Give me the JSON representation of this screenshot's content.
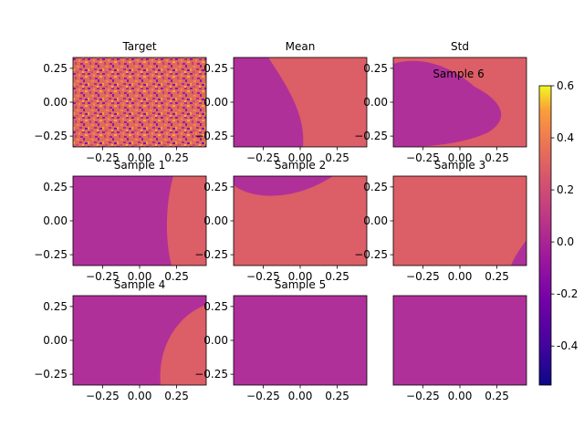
{
  "colormap": "plasma",
  "colors": {
    "panel_salmon": "#dc5e66",
    "panel_purple": "#a5279a",
    "panel_pink": "#b83289",
    "noise_orange": "#f0864e",
    "noise_purple": "#8a1fa0"
  },
  "colorbar": {
    "range": [
      -0.55,
      0.6
    ],
    "ticks": [
      "0.6",
      "0.4",
      "0.2",
      "0.0",
      "-0.2",
      "-0.4"
    ],
    "tick_values": [
      0.6,
      0.4,
      0.2,
      0.0,
      -0.2,
      -0.4
    ]
  },
  "chart_data": [
    {
      "type": "heatmap",
      "title": "Target",
      "x_ticks": [
        "−0.25",
        "0.00",
        "0.25"
      ],
      "y_ticks": [
        "0.25",
        "0.00",
        "−0.25"
      ],
      "xlim": [
        -0.45,
        0.45
      ],
      "ylim": [
        -0.33,
        0.33
      ],
      "pattern": "noise"
    },
    {
      "type": "heatmap",
      "title": "Mean",
      "x_ticks": [
        "−0.25",
        "0.00",
        "0.25"
      ],
      "y_ticks": [
        "0.25",
        "0.00",
        "−0.25"
      ],
      "xlim": [
        -0.45,
        0.45
      ],
      "ylim": [
        -0.33,
        0.33
      ],
      "pattern": "left-lobe"
    },
    {
      "type": "heatmap",
      "title": "Std",
      "annotation": "Sample 6",
      "x_ticks": [
        "−0.25",
        "0.00",
        "0.25"
      ],
      "y_ticks": [
        "0.25",
        "0.00",
        "−0.25"
      ],
      "xlim": [
        -0.45,
        0.45
      ],
      "ylim": [
        -0.33,
        0.33
      ],
      "pattern": "left-bulb"
    },
    {
      "type": "heatmap",
      "title": "Sample 1",
      "x_ticks": [
        "−0.25",
        "0.00",
        "0.25"
      ],
      "y_ticks": [
        "0.25",
        "0.00",
        "−0.25"
      ],
      "xlim": [
        -0.45,
        0.45
      ],
      "ylim": [
        -0.33,
        0.33
      ],
      "pattern": "right-region"
    },
    {
      "type": "heatmap",
      "title": "Sample 2",
      "x_ticks": [
        "−0.25",
        "0.00",
        "0.25"
      ],
      "y_ticks": [
        "0.25",
        "0.00",
        "−0.25"
      ],
      "xlim": [
        -0.45,
        0.45
      ],
      "ylim": [
        -0.33,
        0.33
      ],
      "pattern": "top-arc"
    },
    {
      "type": "heatmap",
      "title": "Sample 3",
      "x_ticks": [
        "−0.25",
        "0.00",
        "0.25"
      ],
      "y_ticks": [
        "0.25",
        "0.00",
        "−0.25"
      ],
      "xlim": [
        -0.45,
        0.45
      ],
      "ylim": [
        -0.33,
        0.33
      ],
      "pattern": "corner"
    },
    {
      "type": "heatmap",
      "title": "Sample 4",
      "x_ticks": [
        "−0.25",
        "0.00",
        "0.25"
      ],
      "y_ticks": [
        "0.25",
        "0.00",
        "−0.25"
      ],
      "xlim": [
        -0.45,
        0.45
      ],
      "ylim": [
        -0.33,
        0.33
      ],
      "pattern": "right-crescent"
    },
    {
      "type": "heatmap",
      "title": "Sample 5",
      "x_ticks": [
        "−0.25",
        "0.00",
        "0.25"
      ],
      "y_ticks": [
        "0.25",
        "0.00",
        "−0.25"
      ],
      "xlim": [
        -0.45,
        0.45
      ],
      "ylim": [
        -0.33,
        0.33
      ],
      "pattern": "uniform"
    },
    {
      "type": "heatmap",
      "title": "",
      "x_ticks": [
        "−0.25",
        "0.00",
        "0.25"
      ],
      "y_ticks": [],
      "xlim": [
        -0.45,
        0.45
      ],
      "ylim": [
        -0.33,
        0.33
      ],
      "pattern": "uniform"
    }
  ]
}
